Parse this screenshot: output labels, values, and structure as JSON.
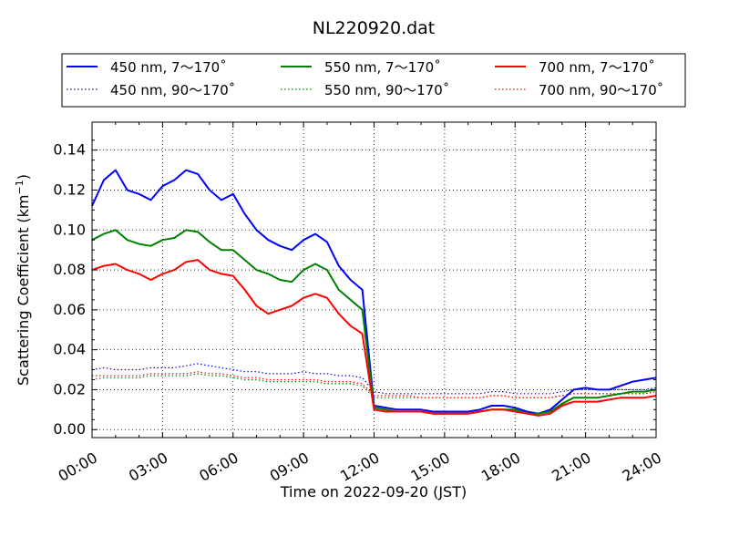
{
  "chart_data": {
    "type": "line",
    "title": "NL220920.dat",
    "xlabel": "Time on 2022-09-20 (JST)",
    "ylabel_main": "Scattering Coefficient (km",
    "ylabel_sup": "−1",
    "ylabel_end": ")",
    "xlim_hours": [
      0,
      24
    ],
    "ylim": [
      -0.004,
      0.154
    ],
    "x_ticks": [
      {
        "hour": 0,
        "label": "00:00"
      },
      {
        "hour": 3,
        "label": "03:00"
      },
      {
        "hour": 6,
        "label": "06:00"
      },
      {
        "hour": 9,
        "label": "09:00"
      },
      {
        "hour": 12,
        "label": "12:00"
      },
      {
        "hour": 15,
        "label": "15:00"
      },
      {
        "hour": 18,
        "label": "18:00"
      },
      {
        "hour": 21,
        "label": "21:00"
      },
      {
        "hour": 24,
        "label": "24:00"
      }
    ],
    "y_ticks": [
      {
        "value": 0.0,
        "label": "0.00"
      },
      {
        "value": 0.02,
        "label": "0.02"
      },
      {
        "value": 0.04,
        "label": "0.04"
      },
      {
        "value": 0.06,
        "label": "0.06"
      },
      {
        "value": 0.08,
        "label": "0.08"
      },
      {
        "value": 0.1,
        "label": "0.10"
      },
      {
        "value": 0.12,
        "label": "0.12"
      },
      {
        "value": 0.14,
        "label": "0.14"
      }
    ],
    "grid": "dotted",
    "legend_position": "top",
    "x_hours": [
      0,
      0.5,
      1,
      1.5,
      2,
      2.5,
      3,
      3.5,
      4,
      4.5,
      5,
      5.5,
      6,
      6.5,
      7,
      7.5,
      8,
      8.5,
      9,
      9.5,
      10,
      10.5,
      11,
      11.5,
      12,
      12.5,
      13,
      13.5,
      14,
      14.5,
      15,
      15.5,
      16,
      16.5,
      17,
      17.5,
      18,
      18.5,
      19,
      19.5,
      20,
      20.5,
      21,
      21.5,
      22,
      22.5,
      23,
      23.5,
      24
    ],
    "series": [
      {
        "name": "450 nm, 7～170˚",
        "color": "#0000ff",
        "style": "solid",
        "width": 2,
        "values": [
          0.112,
          0.125,
          0.13,
          0.12,
          0.118,
          0.115,
          0.122,
          0.125,
          0.13,
          0.128,
          0.12,
          0.115,
          0.118,
          0.108,
          0.1,
          0.095,
          0.092,
          0.09,
          0.095,
          0.098,
          0.094,
          0.082,
          0.075,
          0.07,
          0.012,
          0.011,
          0.01,
          0.01,
          0.01,
          0.009,
          0.009,
          0.009,
          0.009,
          0.01,
          0.012,
          0.012,
          0.011,
          0.009,
          0.008,
          0.01,
          0.015,
          0.02,
          0.021,
          0.02,
          0.02,
          0.022,
          0.024,
          0.025,
          0.026
        ]
      },
      {
        "name": "450 nm, 90～170˚",
        "color": "#0000ff",
        "style": "dotted",
        "width": 1.2,
        "values": [
          0.03,
          0.031,
          0.03,
          0.03,
          0.03,
          0.031,
          0.031,
          0.031,
          0.032,
          0.033,
          0.032,
          0.031,
          0.03,
          0.029,
          0.029,
          0.028,
          0.028,
          0.028,
          0.029,
          0.028,
          0.028,
          0.027,
          0.027,
          0.026,
          0.019,
          0.018,
          0.018,
          0.018,
          0.018,
          0.018,
          0.018,
          0.018,
          0.018,
          0.018,
          0.019,
          0.019,
          0.018,
          0.018,
          0.018,
          0.018,
          0.019,
          0.02,
          0.02,
          0.02,
          0.02,
          0.02,
          0.02,
          0.02,
          0.021
        ]
      },
      {
        "name": "550 nm, 7～170˚",
        "color": "#008000",
        "style": "solid",
        "width": 2,
        "values": [
          0.095,
          0.098,
          0.1,
          0.095,
          0.093,
          0.092,
          0.095,
          0.096,
          0.1,
          0.099,
          0.094,
          0.09,
          0.09,
          0.085,
          0.08,
          0.078,
          0.075,
          0.074,
          0.08,
          0.083,
          0.08,
          0.07,
          0.065,
          0.06,
          0.011,
          0.01,
          0.009,
          0.009,
          0.009,
          0.008,
          0.008,
          0.008,
          0.008,
          0.009,
          0.01,
          0.01,
          0.01,
          0.008,
          0.008,
          0.009,
          0.013,
          0.016,
          0.016,
          0.016,
          0.017,
          0.018,
          0.019,
          0.019,
          0.02
        ]
      },
      {
        "name": "550 nm, 90～170˚",
        "color": "#008000",
        "style": "dotted",
        "width": 1.2,
        "values": [
          0.025,
          0.026,
          0.026,
          0.026,
          0.026,
          0.027,
          0.027,
          0.027,
          0.027,
          0.028,
          0.027,
          0.027,
          0.026,
          0.025,
          0.025,
          0.024,
          0.024,
          0.024,
          0.024,
          0.024,
          0.023,
          0.023,
          0.023,
          0.022,
          0.016,
          0.016,
          0.016,
          0.016,
          0.016,
          0.016,
          0.016,
          0.016,
          0.016,
          0.016,
          0.017,
          0.017,
          0.016,
          0.016,
          0.016,
          0.016,
          0.017,
          0.018,
          0.018,
          0.018,
          0.018,
          0.018,
          0.018,
          0.018,
          0.019
        ]
      },
      {
        "name": "700 nm, 7～170˚",
        "color": "#ff0000",
        "style": "solid",
        "width": 2,
        "values": [
          0.08,
          0.082,
          0.083,
          0.08,
          0.078,
          0.075,
          0.078,
          0.08,
          0.084,
          0.085,
          0.08,
          0.078,
          0.077,
          0.07,
          0.062,
          0.058,
          0.06,
          0.062,
          0.066,
          0.068,
          0.066,
          0.058,
          0.052,
          0.048,
          0.01,
          0.009,
          0.009,
          0.009,
          0.009,
          0.008,
          0.008,
          0.008,
          0.008,
          0.009,
          0.01,
          0.01,
          0.009,
          0.008,
          0.007,
          0.008,
          0.012,
          0.014,
          0.014,
          0.014,
          0.015,
          0.016,
          0.016,
          0.016,
          0.017
        ]
      },
      {
        "name": "700 nm, 90～170˚",
        "color": "#ff0000",
        "style": "dotted",
        "width": 1.2,
        "values": [
          0.027,
          0.027,
          0.027,
          0.027,
          0.027,
          0.028,
          0.028,
          0.028,
          0.028,
          0.029,
          0.028,
          0.028,
          0.027,
          0.026,
          0.026,
          0.025,
          0.025,
          0.025,
          0.025,
          0.025,
          0.024,
          0.024,
          0.024,
          0.023,
          0.017,
          0.017,
          0.017,
          0.017,
          0.016,
          0.016,
          0.016,
          0.016,
          0.016,
          0.016,
          0.017,
          0.017,
          0.016,
          0.016,
          0.016,
          0.016,
          0.017,
          0.018,
          0.018,
          0.018,
          0.018,
          0.018,
          0.018,
          0.018,
          0.019
        ]
      }
    ]
  }
}
